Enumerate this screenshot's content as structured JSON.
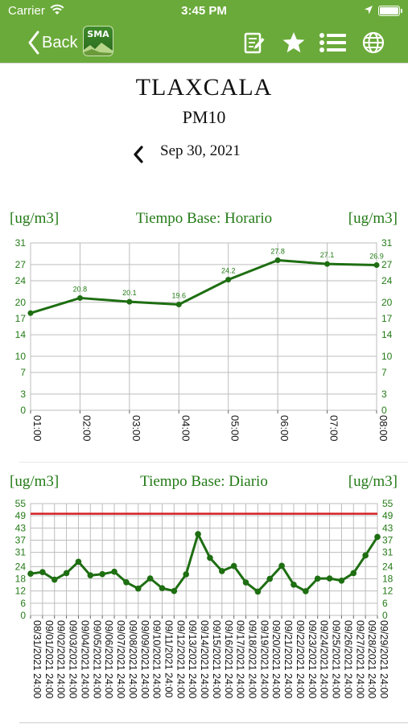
{
  "status_bar": {
    "carrier": "Carrier",
    "time": "3:45 PM"
  },
  "nav": {
    "back_label": "Back",
    "logo_text": "SMA",
    "icons": [
      "report-icon",
      "star-icon",
      "list-icon",
      "globe-icon"
    ]
  },
  "station": "TLAXCALA",
  "pollutant": "PM10",
  "date": "Sep 30, 2021",
  "colors": {
    "nav_green": "#6aaa3a",
    "series_green": "#1e6e12",
    "label_green": "#237a16",
    "limit_red": "#d42020"
  },
  "chart_data": [
    {
      "type": "line",
      "title": "Tiempo Base: Horario",
      "ylabel_left": "[ug/m3]",
      "ylabel_right": "[ug/m3]",
      "categories": [
        "01:00",
        "02:00",
        "03:00",
        "04:00",
        "05:00",
        "06:00",
        "07:00",
        "08:00"
      ],
      "values": [
        18.0,
        20.8,
        20.1,
        19.6,
        24.2,
        27.8,
        27.1,
        26.9
      ],
      "data_labels": [
        "",
        "20.8",
        "20.1",
        "19.6",
        "24.2",
        "27.8",
        "27.1",
        "26.9"
      ],
      "yticks": [
        0,
        3,
        7,
        10,
        14,
        17,
        20,
        24,
        27,
        31
      ],
      "ylim": [
        0,
        31
      ],
      "grid": true
    },
    {
      "type": "line",
      "title": "Tiempo Base: Diario",
      "ylabel_left": "[ug/m3]",
      "ylabel_right": "[ug/m3]",
      "categories": [
        "08/31/2021 24:00",
        "09/01/2021 24:00",
        "09/02/2021 24:00",
        "09/03/2021 24:00",
        "09/04/2021 24:00",
        "09/05/2021 24:00",
        "09/06/2021 24:00",
        "09/07/2021 24:00",
        "09/08/2021 24:00",
        "09/09/2021 24:00",
        "09/10/2021 24:00",
        "09/11/2021 24:00",
        "09/12/2021 24:00",
        "09/13/2021 24:00",
        "09/14/2021 24:00",
        "09/15/2021 24:00",
        "09/16/2021 24:00",
        "09/17/2021 24:00",
        "09/18/2021 24:00",
        "09/19/2021 24:00",
        "09/20/2021 24:00",
        "09/21/2021 24:00",
        "09/22/2021 24:00",
        "09/23/2021 24:00",
        "09/24/2021 24:00",
        "09/25/2021 24:00",
        "09/26/2021 24:00",
        "09/27/2021 24:00",
        "09/28/2021 24:00",
        "09/29/2021 24:00"
      ],
      "values": [
        20.5,
        21.3,
        17.6,
        20.8,
        26.4,
        19.7,
        20.3,
        21.5,
        16.3,
        13.2,
        18.2,
        13.4,
        12.0,
        20.2,
        40.0,
        28.3,
        21.8,
        24.3,
        16.2,
        11.7,
        18.0,
        24.4,
        15.1,
        11.9,
        18.1,
        18.2,
        17.1,
        20.8,
        29.5,
        38.6
      ],
      "limit": 50,
      "yticks": [
        0,
        6,
        12,
        18,
        24,
        31,
        37,
        43,
        49,
        55
      ],
      "ylim": [
        0,
        55
      ],
      "grid": true
    }
  ]
}
